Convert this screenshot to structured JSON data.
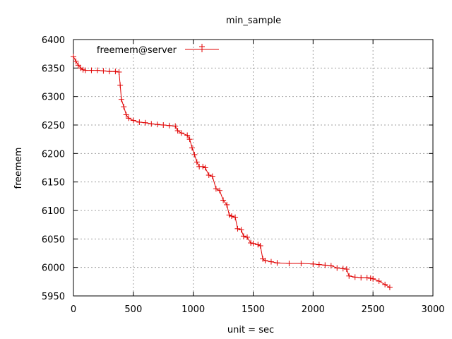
{
  "chart_data": {
    "type": "line",
    "title": "min_sample",
    "xlabel": "unit = sec",
    "ylabel": "freemem",
    "xlim": [
      0,
      3000
    ],
    "ylim": [
      5950,
      6400
    ],
    "xticks": [
      0,
      500,
      1000,
      1500,
      2000,
      2500,
      3000
    ],
    "yticks": [
      5950,
      6000,
      6050,
      6100,
      6150,
      6200,
      6250,
      6300,
      6350,
      6400
    ],
    "grid": true,
    "legend_position": "top-left",
    "series": [
      {
        "name": "freemem@server",
        "color": "#e00000",
        "marker": "plus",
        "x": [
          0,
          20,
          40,
          60,
          80,
          100,
          150,
          200,
          250,
          300,
          350,
          380,
          390,
          400,
          420,
          440,
          460,
          500,
          550,
          600,
          650,
          700,
          750,
          800,
          850,
          870,
          900,
          950,
          970,
          990,
          1010,
          1030,
          1050,
          1080,
          1100,
          1130,
          1160,
          1190,
          1220,
          1250,
          1280,
          1300,
          1320,
          1350,
          1370,
          1400,
          1420,
          1450,
          1480,
          1500,
          1540,
          1560,
          1580,
          1600,
          1650,
          1700,
          1800,
          1900,
          2000,
          2050,
          2100,
          2150,
          2200,
          2250,
          2280,
          2300,
          2350,
          2400,
          2450,
          2480,
          2500,
          2550,
          2600,
          2640
        ],
        "y": [
          6370,
          6362,
          6355,
          6350,
          6347,
          6346,
          6346,
          6346,
          6345,
          6344,
          6344,
          6343,
          6320,
          6295,
          6282,
          6268,
          6262,
          6258,
          6255,
          6254,
          6252,
          6251,
          6250,
          6249,
          6248,
          6240,
          6236,
          6232,
          6225,
          6210,
          6198,
          6185,
          6177,
          6177,
          6175,
          6162,
          6160,
          6138,
          6135,
          6118,
          6110,
          6092,
          6090,
          6088,
          6068,
          6066,
          6055,
          6053,
          6043,
          6042,
          6040,
          6038,
          6015,
          6012,
          6010,
          6008,
          6007,
          6007,
          6006,
          6005,
          6004,
          6003,
          5999,
          5998,
          5997,
          5985,
          5983,
          5982,
          5982,
          5981,
          5980,
          5976,
          5970,
          5965
        ]
      }
    ]
  }
}
